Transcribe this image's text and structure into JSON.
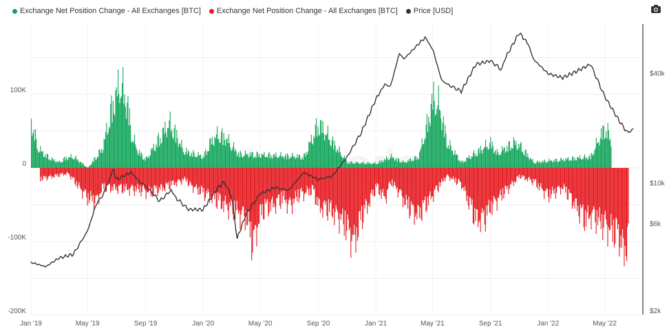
{
  "legend": [
    {
      "label": "Exchange Net Position Change - All Exchanges [BTC]",
      "color": "#12a65a"
    },
    {
      "label": "Exchange Net Position Change - All Exchanges [BTC]",
      "color": "#e5191f"
    },
    {
      "label": "Price [USD]",
      "color": "#333333"
    }
  ],
  "watermark": "glassnode",
  "icons": {
    "camera": "camera-icon"
  },
  "chart_data": {
    "type": "bar",
    "x_ticks": [
      "Jan '19",
      "May '19",
      "Sep '19",
      "Jan '20",
      "May '20",
      "Sep '20",
      "Jan '21",
      "May '21",
      "Sep '21",
      "Jan '22",
      "May '22"
    ],
    "y_left_ticks": [
      "100K",
      "0",
      "-100K",
      "-200K"
    ],
    "y_left_range": [
      -200000,
      200000
    ],
    "y_right_ticks": [
      "$40k",
      "$10k",
      "$6k",
      "$2k"
    ],
    "y_right_scale": "log",
    "series": [
      {
        "name": "Exchange Net Position Change - All Exchanges [BTC]",
        "color": "#12a65a",
        "kind": "bar",
        "points": [
          [
            "2019-01",
            85000
          ],
          [
            "2019-01-15",
            35000
          ],
          [
            "2019-02",
            22000
          ],
          [
            "2019-02-15",
            15000
          ],
          [
            "2019-03",
            10000
          ],
          [
            "2019-03-15",
            18000
          ],
          [
            "2019-04",
            20000
          ],
          [
            "2019-05",
            0
          ],
          [
            "2019-06",
            35000
          ],
          [
            "2019-06-20",
            105000
          ],
          [
            "2019-07",
            135000
          ],
          [
            "2019-07-10",
            150000
          ],
          [
            "2019-07-25",
            110000
          ],
          [
            "2019-08",
            60000
          ],
          [
            "2019-08-15",
            30000
          ],
          [
            "2019-09",
            15000
          ],
          [
            "2019-10",
            55000
          ],
          [
            "2019-10-20",
            80000
          ],
          [
            "2019-11",
            65000
          ],
          [
            "2019-11-20",
            30000
          ],
          [
            "2020-01",
            20000
          ],
          [
            "2020-01-15",
            45000
          ],
          [
            "2020-02",
            60000
          ],
          [
            "2020-02-15",
            55000
          ],
          [
            "2020-03",
            40000
          ],
          [
            "2020-03-15",
            25000
          ],
          [
            "2020-08",
            20000
          ],
          [
            "2020-09",
            80000
          ],
          [
            "2020-11",
            10000
          ],
          [
            "2021-01",
            8000
          ],
          [
            "2021-02",
            20000
          ],
          [
            "2021-03",
            10000
          ],
          [
            "2021-04",
            20000
          ],
          [
            "2021-04-20",
            80000
          ],
          [
            "2021-05",
            125000
          ],
          [
            "2021-05-15",
            110000
          ],
          [
            "2021-06",
            45000
          ],
          [
            "2021-07",
            10000
          ],
          [
            "2021-09",
            45000
          ],
          [
            "2021-09-15",
            25000
          ],
          [
            "2021-10",
            35000
          ],
          [
            "2021-10-20",
            45000
          ],
          [
            "2021-11",
            40000
          ],
          [
            "2021-12",
            10000
          ],
          [
            "2022-02",
            15000
          ],
          [
            "2022-04",
            20000
          ],
          [
            "2022-04-20",
            55000
          ],
          [
            "2022-05",
            72000
          ],
          [
            "2022-05-15",
            50000
          ]
        ]
      },
      {
        "name": "Exchange Net Position Change - All Exchanges [BTC]",
        "color": "#e5191f",
        "kind": "bar",
        "points": [
          [
            "2019-01-20",
            -20000
          ],
          [
            "2019-03-20",
            -10000
          ],
          [
            "2019-05",
            -55000
          ],
          [
            "2019-05-20",
            -60000
          ],
          [
            "2019-06",
            -35000
          ],
          [
            "2019-08-20",
            -40000
          ],
          [
            "2019-09-10",
            -45000
          ],
          [
            "2019-11-25",
            -20000
          ],
          [
            "2019-12",
            -30000
          ],
          [
            "2020-04",
            -90000
          ],
          [
            "2020-04-15",
            -140000
          ],
          [
            "2020-05",
            -80000
          ],
          [
            "2020-05-20",
            -70000
          ],
          [
            "2020-06",
            -65000
          ],
          [
            "2020-06-20",
            -55000
          ],
          [
            "2020-07",
            -70000
          ],
          [
            "2020-07-20",
            -50000
          ],
          [
            "2020-08-20",
            -40000
          ],
          [
            "2020-09",
            -70000
          ],
          [
            "2020-09-20",
            -75000
          ],
          [
            "2020-10",
            -80000
          ],
          [
            "2020-10-15",
            -90000
          ],
          [
            "2020-11",
            -110000
          ],
          [
            "2020-11-15",
            -135000
          ],
          [
            "2020-12",
            -90000
          ],
          [
            "2021-01",
            -35000
          ],
          [
            "2021-01-20",
            -55000
          ],
          [
            "2021-02",
            -25000
          ],
          [
            "2021-02-20",
            -45000
          ],
          [
            "2021-03",
            -60000
          ],
          [
            "2021-03-20",
            -80000
          ],
          [
            "2021-04",
            -85000
          ],
          [
            "2021-05-25",
            -20000
          ],
          [
            "2021-06",
            -15000
          ],
          [
            "2021-07",
            -30000
          ],
          [
            "2021-07-20",
            -70000
          ],
          [
            "2021-08",
            -95000
          ],
          [
            "2021-08-20",
            -90000
          ],
          [
            "2021-09",
            -70000
          ],
          [
            "2021-11",
            -15000
          ],
          [
            "2021-12",
            -25000
          ],
          [
            "2022-01",
            -50000
          ],
          [
            "2022-02",
            -35000
          ],
          [
            "2022-03",
            -70000
          ],
          [
            "2022-03-20",
            -95000
          ],
          [
            "2022-04",
            -85000
          ],
          [
            "2022-06",
            -125000
          ],
          [
            "2022-06-10",
            -155000
          ],
          [
            "2022-06-20",
            -125000
          ]
        ]
      },
      {
        "name": "Price [USD]",
        "color": "#333333",
        "kind": "line",
        "axis": "right",
        "points": [
          [
            "2019-01",
            3700
          ],
          [
            "2019-02",
            3500
          ],
          [
            "2019-03",
            3900
          ],
          [
            "2019-04",
            4100
          ],
          [
            "2019-05",
            5500
          ],
          [
            "2019-05-20",
            7800
          ],
          [
            "2019-06",
            8500
          ],
          [
            "2019-06-25",
            12000
          ],
          [
            "2019-07",
            10500
          ],
          [
            "2019-08",
            11500
          ],
          [
            "2019-08-20",
            10200
          ],
          [
            "2019-09",
            9700
          ],
          [
            "2019-10",
            8000
          ],
          [
            "2019-10-25",
            9200
          ],
          [
            "2019-11",
            8500
          ],
          [
            "2019-12",
            7200
          ],
          [
            "2020-01",
            7200
          ],
          [
            "2020-02",
            9500
          ],
          [
            "2020-02-15",
            10200
          ],
          [
            "2020-03",
            8500
          ],
          [
            "2020-03-13",
            5000
          ],
          [
            "2020-04",
            6800
          ],
          [
            "2020-05",
            8800
          ],
          [
            "2020-06",
            9500
          ],
          [
            "2020-07",
            9200
          ],
          [
            "2020-08",
            11500
          ],
          [
            "2020-09",
            10500
          ],
          [
            "2020-10",
            11000
          ],
          [
            "2020-11",
            14000
          ],
          [
            "2020-12",
            19000
          ],
          [
            "2021-01",
            29000
          ],
          [
            "2021-01-20",
            35000
          ],
          [
            "2021-02",
            34000
          ],
          [
            "2021-02-20",
            52000
          ],
          [
            "2021-03",
            48000
          ],
          [
            "2021-04",
            58000
          ],
          [
            "2021-04-15",
            63000
          ],
          [
            "2021-05",
            55000
          ],
          [
            "2021-05-20",
            37000
          ],
          [
            "2021-06",
            35000
          ],
          [
            "2021-07",
            32000
          ],
          [
            "2021-08",
            45000
          ],
          [
            "2021-09",
            47000
          ],
          [
            "2021-09-25",
            42000
          ],
          [
            "2021-10",
            48000
          ],
          [
            "2021-11",
            67000
          ],
          [
            "2021-11-20",
            58000
          ],
          [
            "2021-12",
            48000
          ],
          [
            "2022-01",
            40000
          ],
          [
            "2022-02",
            38000
          ],
          [
            "2022-03",
            41000
          ],
          [
            "2022-04",
            45000
          ],
          [
            "2022-05",
            30000
          ],
          [
            "2022-06",
            22000
          ],
          [
            "2022-06-18",
            19000
          ],
          [
            "2022-07",
            20000
          ]
        ]
      }
    ],
    "legend_position": "top-left",
    "grid": true
  }
}
